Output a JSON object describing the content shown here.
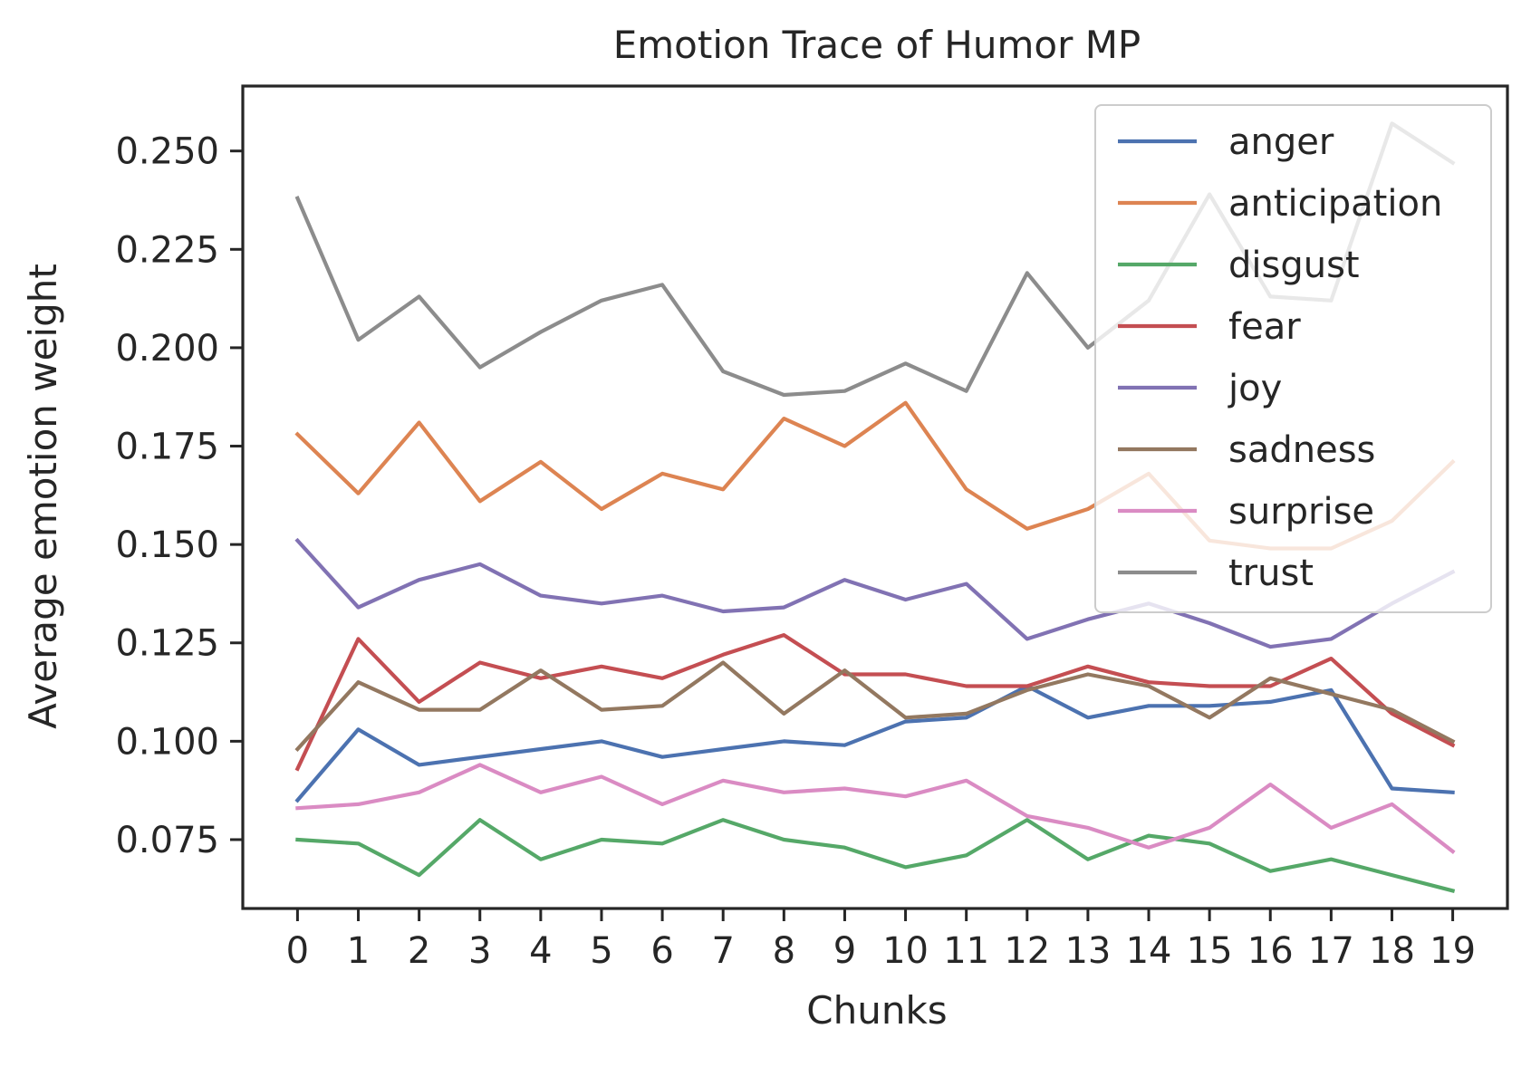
{
  "chart_data": {
    "type": "line",
    "title": "Emotion Trace of Humor MP",
    "xlabel": "Chunks",
    "ylabel": "Average emotion weight",
    "x": [
      0,
      1,
      2,
      3,
      4,
      5,
      6,
      7,
      8,
      9,
      10,
      11,
      12,
      13,
      14,
      15,
      16,
      17,
      18,
      19
    ],
    "xtick_labels": [
      "0",
      "1",
      "2",
      "3",
      "4",
      "5",
      "6",
      "7",
      "8",
      "9",
      "10",
      "11",
      "12",
      "13",
      "14",
      "15",
      "16",
      "17",
      "18",
      "19"
    ],
    "yticks": [
      0.075,
      0.1,
      0.125,
      0.15,
      0.175,
      0.2,
      0.225,
      0.25
    ],
    "ytick_labels": [
      "0.075",
      "0.100",
      "0.125",
      "0.150",
      "0.175",
      "0.200",
      "0.225",
      "0.250"
    ],
    "xlim": [
      -0.9,
      19.9
    ],
    "ylim": [
      0.0575,
      0.2665
    ],
    "grid": false,
    "legend_position": "upper right",
    "series": [
      {
        "name": "anger",
        "color": "#4c72b0",
        "values": [
          0.085,
          0.103,
          0.094,
          0.096,
          0.098,
          0.1,
          0.096,
          0.098,
          0.1,
          0.099,
          0.105,
          0.106,
          0.114,
          0.106,
          0.109,
          0.109,
          0.11,
          0.113,
          0.088,
          0.087
        ]
      },
      {
        "name": "anticipation",
        "color": "#dd8452",
        "values": [
          0.178,
          0.163,
          0.181,
          0.161,
          0.171,
          0.159,
          0.168,
          0.164,
          0.182,
          0.175,
          0.186,
          0.164,
          0.154,
          0.159,
          0.168,
          0.151,
          0.149,
          0.149,
          0.156,
          0.171
        ]
      },
      {
        "name": "disgust",
        "color": "#55a868",
        "values": [
          0.075,
          0.074,
          0.066,
          0.08,
          0.07,
          0.075,
          0.074,
          0.08,
          0.075,
          0.073,
          0.068,
          0.071,
          0.08,
          0.07,
          0.076,
          0.074,
          0.067,
          0.07,
          0.066,
          0.062
        ]
      },
      {
        "name": "fear",
        "color": "#c44e52",
        "values": [
          0.093,
          0.126,
          0.11,
          0.12,
          0.116,
          0.119,
          0.116,
          0.122,
          0.127,
          0.117,
          0.117,
          0.114,
          0.114,
          0.119,
          0.115,
          0.114,
          0.114,
          0.121,
          0.107,
          0.099
        ]
      },
      {
        "name": "joy",
        "color": "#8172b3",
        "values": [
          0.151,
          0.134,
          0.141,
          0.145,
          0.137,
          0.135,
          0.137,
          0.133,
          0.134,
          0.141,
          0.136,
          0.14,
          0.126,
          0.131,
          0.135,
          0.13,
          0.124,
          0.126,
          0.135,
          0.143
        ]
      },
      {
        "name": "sadness",
        "color": "#937860",
        "values": [
          0.098,
          0.115,
          0.108,
          0.108,
          0.118,
          0.108,
          0.109,
          0.12,
          0.107,
          0.118,
          0.106,
          0.107,
          0.113,
          0.117,
          0.114,
          0.106,
          0.116,
          0.112,
          0.108,
          0.1
        ]
      },
      {
        "name": "surprise",
        "color": "#da8bc3",
        "values": [
          0.083,
          0.084,
          0.087,
          0.094,
          0.087,
          0.091,
          0.084,
          0.09,
          0.087,
          0.088,
          0.086,
          0.09,
          0.081,
          0.078,
          0.073,
          0.078,
          0.089,
          0.078,
          0.084,
          0.072
        ]
      },
      {
        "name": "trust",
        "color": "#8c8c8c",
        "values": [
          0.238,
          0.202,
          0.213,
          0.195,
          0.204,
          0.212,
          0.216,
          0.194,
          0.188,
          0.189,
          0.196,
          0.189,
          0.219,
          0.2,
          0.212,
          0.239,
          0.213,
          0.212,
          0.257,
          0.247
        ]
      }
    ]
  }
}
